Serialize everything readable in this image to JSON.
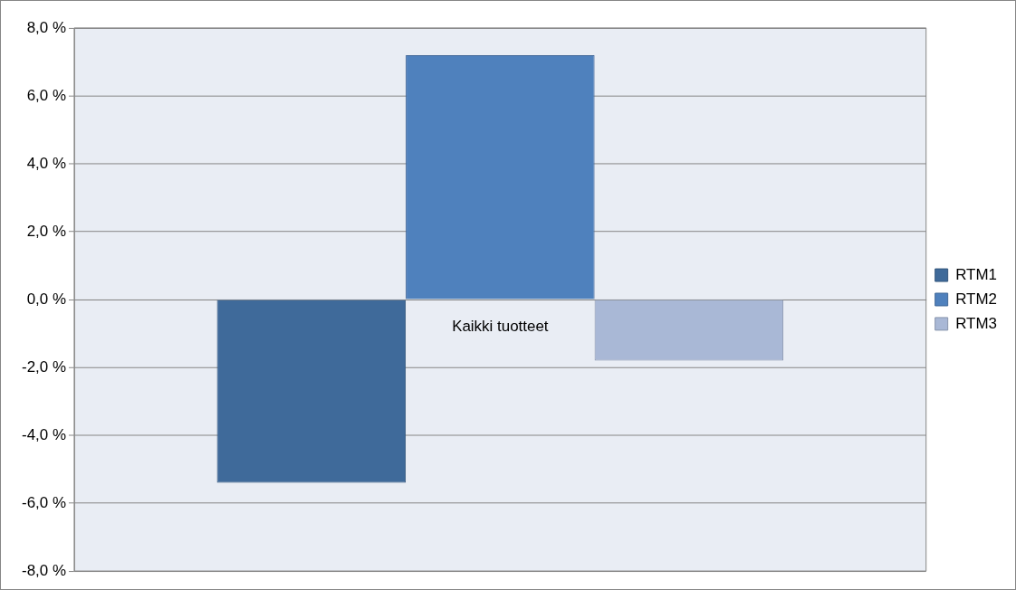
{
  "chart_data": {
    "type": "bar",
    "categories": [
      "Kaikki tuotteet"
    ],
    "series": [
      {
        "name": "RTM1",
        "color": "#3f6a9a",
        "values": [
          -5.4
        ]
      },
      {
        "name": "RTM2",
        "color": "#4f81bd",
        "values": [
          7.2
        ]
      },
      {
        "name": "RTM3",
        "color": "#a9b8d6",
        "values": [
          -1.8
        ]
      }
    ],
    "ylim": [
      -8,
      8
    ],
    "yticks": [
      {
        "value": -8,
        "label": "-8,0 %"
      },
      {
        "value": -6,
        "label": "-6,0 %"
      },
      {
        "value": -4,
        "label": "-4,0 %"
      },
      {
        "value": -2,
        "label": "-2,0 %"
      },
      {
        "value": 0,
        "label": "0,0 %"
      },
      {
        "value": 2,
        "label": "2,0 %"
      },
      {
        "value": 4,
        "label": "4,0 %"
      },
      {
        "value": 6,
        "label": "6,0 %"
      },
      {
        "value": 8,
        "label": "8,0 %"
      }
    ],
    "grid": "y",
    "legend": "right"
  }
}
